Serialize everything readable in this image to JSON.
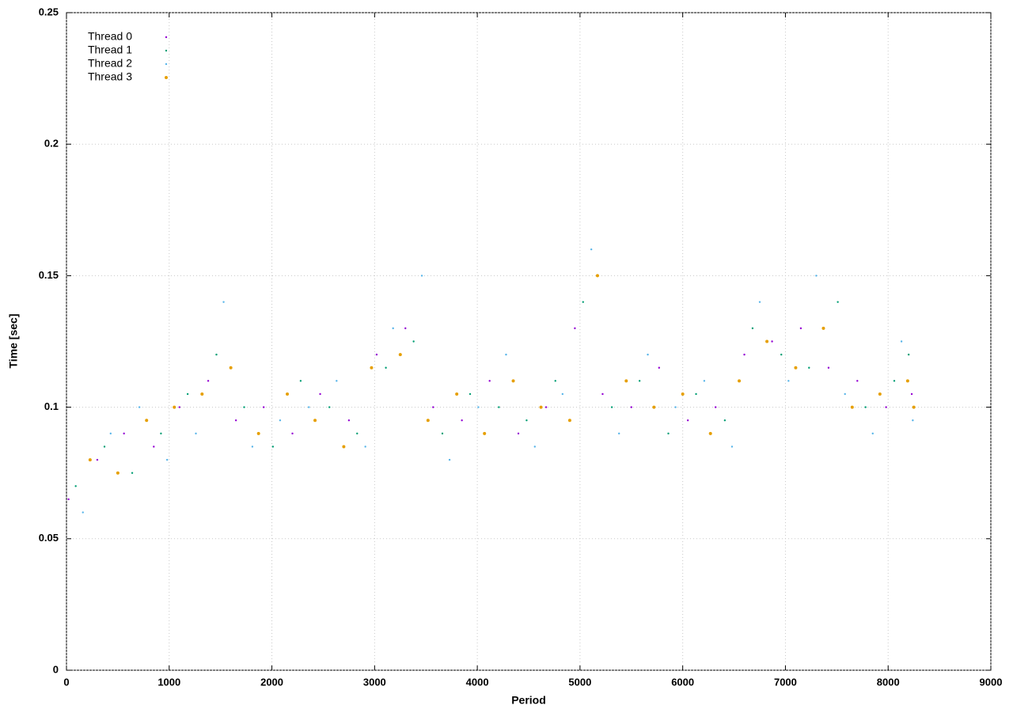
{
  "chart_data": {
    "type": "scatter",
    "xlabel": "Period",
    "ylabel": "Time [sec]",
    "xlim": [
      0,
      9000
    ],
    "ylim": [
      0,
      0.25
    ],
    "xticks": [
      0,
      1000,
      2000,
      3000,
      4000,
      5000,
      6000,
      7000,
      8000,
      9000
    ],
    "yticks": [
      0,
      0.05,
      0.1,
      0.15,
      0.2,
      0.25
    ],
    "grid": true,
    "legend": "top-left",
    "series": [
      {
        "name": "Thread 0",
        "color": "#9400d3",
        "x": [
          20,
          300,
          560,
          850,
          1100,
          1380,
          1650,
          1920,
          2200,
          2470,
          2750,
          3020,
          3300,
          3570,
          3850,
          4120,
          4400,
          4670,
          4950,
          5220,
          5500,
          5770,
          6050,
          6320,
          6600,
          6870,
          7150,
          7420,
          7700,
          7980,
          8230
        ],
        "values": [
          0.065,
          0.08,
          0.09,
          0.085,
          0.1,
          0.11,
          0.095,
          0.1,
          0.09,
          0.105,
          0.095,
          0.12,
          0.13,
          0.1,
          0.095,
          0.11,
          0.09,
          0.1,
          0.13,
          0.105,
          0.1,
          0.115,
          0.095,
          0.1,
          0.12,
          0.125,
          0.13,
          0.115,
          0.11,
          0.1,
          0.105
        ]
      },
      {
        "name": "Thread 1",
        "color": "#009e73",
        "x": [
          90,
          370,
          640,
          920,
          1180,
          1460,
          1730,
          2010,
          2280,
          2560,
          2830,
          3110,
          3380,
          3660,
          3930,
          4210,
          4480,
          4760,
          5030,
          5310,
          5580,
          5860,
          6130,
          6410,
          6680,
          6960,
          7230,
          7510,
          7780,
          8060,
          8200
        ],
        "values": [
          0.07,
          0.085,
          0.075,
          0.09,
          0.105,
          0.12,
          0.1,
          0.085,
          0.11,
          0.1,
          0.09,
          0.115,
          0.125,
          0.09,
          0.105,
          0.1,
          0.095,
          0.11,
          0.14,
          0.1,
          0.11,
          0.09,
          0.105,
          0.095,
          0.13,
          0.12,
          0.115,
          0.14,
          0.1,
          0.11,
          0.12
        ]
      },
      {
        "name": "Thread 2",
        "color": "#56b4e9",
        "x": [
          160,
          430,
          710,
          980,
          1260,
          1530,
          1810,
          2080,
          2360,
          2630,
          2910,
          3180,
          3460,
          3730,
          4010,
          4280,
          4560,
          4830,
          5110,
          5380,
          5660,
          5930,
          6210,
          6480,
          6750,
          7030,
          7300,
          7580,
          7850,
          8130,
          8240
        ],
        "values": [
          0.06,
          0.09,
          0.1,
          0.08,
          0.09,
          0.14,
          0.085,
          0.095,
          0.1,
          0.11,
          0.085,
          0.13,
          0.15,
          0.08,
          0.1,
          0.12,
          0.085,
          0.105,
          0.16,
          0.09,
          0.12,
          0.1,
          0.11,
          0.085,
          0.14,
          0.11,
          0.15,
          0.105,
          0.09,
          0.125,
          0.095
        ]
      },
      {
        "name": "Thread 3",
        "color": "#e69f00",
        "x": [
          230,
          500,
          780,
          1050,
          1320,
          1600,
          1870,
          2150,
          2420,
          2700,
          2970,
          3250,
          3520,
          3800,
          4070,
          4350,
          4620,
          4900,
          5170,
          5450,
          5720,
          6000,
          6270,
          6550,
          6820,
          7100,
          7370,
          7650,
          7920,
          8190,
          8250
        ],
        "values": [
          0.08,
          0.075,
          0.095,
          0.1,
          0.105,
          0.115,
          0.09,
          0.105,
          0.095,
          0.085,
          0.115,
          0.12,
          0.095,
          0.105,
          0.09,
          0.11,
          0.1,
          0.095,
          0.15,
          0.11,
          0.1,
          0.105,
          0.09,
          0.11,
          0.125,
          0.115,
          0.13,
          0.1,
          0.105,
          0.11,
          0.1
        ]
      }
    ]
  }
}
